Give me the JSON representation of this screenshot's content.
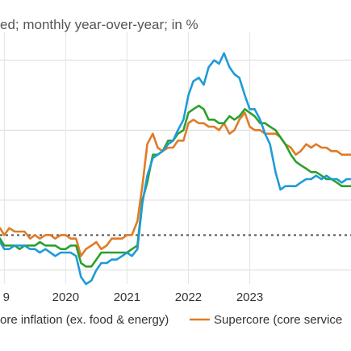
{
  "chart_data": {
    "type": "line",
    "subtitle": "ed; monthly year-over-year; in %",
    "x_ticks": [
      {
        "year": 2019,
        "label": "9"
      },
      {
        "year": 2020,
        "label": "2020"
      },
      {
        "year": 2021,
        "label": "2021"
      },
      {
        "year": 2022,
        "label": "2022"
      },
      {
        "year": 2023,
        "label": "2023"
      }
    ],
    "xlim": [
      2018.93,
      2024.65
    ],
    "ylim": [
      0.6,
      7.8
    ],
    "gridlines_y": [
      1,
      3,
      5,
      7
    ],
    "reference_line_y": 2,
    "grid": true,
    "legend_placement": "bottom",
    "legend": [
      {
        "label": "ore inflation (ex. food & energy)",
        "color": "#2ca02c"
      },
      {
        "label": "Supercore (core service",
        "color": "#e07b28"
      }
    ],
    "series": [
      {
        "color": "#1f9bd7",
        "x": [
          2018.93,
          2019.0,
          2019.08,
          2019.17,
          2019.25,
          2019.33,
          2019.42,
          2019.5,
          2019.58,
          2019.67,
          2019.75,
          2019.83,
          2019.92,
          2020.0,
          2020.08,
          2020.17,
          2020.25,
          2020.33,
          2020.42,
          2020.5,
          2020.58,
          2020.67,
          2020.75,
          2020.83,
          2020.92,
          2021.0,
          2021.08,
          2021.17,
          2021.25,
          2021.33,
          2021.42,
          2021.5,
          2021.58,
          2021.67,
          2021.75,
          2021.83,
          2021.92,
          2022.0,
          2022.08,
          2022.17,
          2022.25,
          2022.33,
          2022.42,
          2022.5,
          2022.58,
          2022.67,
          2022.75,
          2022.83,
          2022.92,
          2023.0,
          2023.08,
          2023.17,
          2023.25,
          2023.33,
          2023.42,
          2023.5,
          2023.58,
          2023.67,
          2023.75,
          2023.83,
          2023.92,
          2024.0,
          2024.08,
          2024.17,
          2024.25,
          2024.33,
          2024.42,
          2024.5,
          2024.58,
          2024.65
        ],
        "y": [
          1.8,
          1.6,
          1.6,
          1.7,
          1.7,
          1.7,
          1.6,
          1.6,
          1.5,
          1.6,
          1.5,
          1.4,
          1.5,
          1.5,
          1.5,
          1.4,
          0.8,
          0.6,
          0.7,
          1.0,
          1.2,
          1.2,
          1.3,
          1.3,
          1.4,
          1.5,
          1.4,
          1.6,
          2.9,
          3.7,
          4.2,
          4.3,
          4.4,
          4.6,
          4.7,
          5.0,
          5.3,
          6.0,
          6.4,
          6.5,
          6.3,
          6.8,
          7.0,
          6.9,
          7.2,
          6.8,
          6.6,
          6.5,
          6.0,
          5.6,
          5.6,
          5.3,
          4.9,
          4.6,
          3.8,
          3.3,
          3.4,
          3.4,
          3.4,
          3.5,
          3.6,
          3.6,
          3.7,
          3.6,
          3.7,
          3.6,
          3.6,
          3.5,
          3.6,
          3.6
        ]
      },
      {
        "name": "ore inflation (ex. food & energy)",
        "color": "#2ca02c",
        "x": [
          2018.93,
          2019.0,
          2019.08,
          2019.17,
          2019.25,
          2019.33,
          2019.42,
          2019.5,
          2019.58,
          2019.67,
          2019.75,
          2019.83,
          2019.92,
          2020.0,
          2020.08,
          2020.17,
          2020.25,
          2020.33,
          2020.42,
          2020.5,
          2020.58,
          2020.67,
          2020.75,
          2020.83,
          2020.92,
          2021.0,
          2021.08,
          2021.17,
          2021.25,
          2021.33,
          2021.42,
          2021.5,
          2021.58,
          2021.67,
          2021.75,
          2021.83,
          2021.92,
          2022.0,
          2022.08,
          2022.17,
          2022.25,
          2022.33,
          2022.42,
          2022.5,
          2022.58,
          2022.67,
          2022.75,
          2022.83,
          2022.92,
          2023.0,
          2023.08,
          2023.17,
          2023.25,
          2023.33,
          2023.42,
          2023.5,
          2023.58,
          2023.67,
          2023.75,
          2023.83,
          2023.92,
          2024.0,
          2024.08,
          2024.17,
          2024.25,
          2024.33,
          2024.42,
          2024.5,
          2024.58,
          2024.65
        ],
        "y": [
          1.9,
          1.7,
          1.7,
          1.7,
          1.6,
          1.7,
          1.7,
          1.7,
          1.8,
          1.7,
          1.7,
          1.7,
          1.6,
          1.6,
          1.7,
          1.7,
          1.2,
          1.1,
          1.1,
          1.3,
          1.5,
          1.5,
          1.5,
          1.5,
          1.5,
          1.5,
          1.6,
          1.7,
          3.0,
          3.5,
          4.3,
          4.3,
          4.4,
          4.7,
          4.7,
          4.9,
          5.0,
          5.5,
          5.6,
          5.7,
          5.6,
          5.3,
          5.3,
          5.2,
          5.2,
          5.4,
          5.3,
          5.4,
          5.6,
          5.5,
          5.4,
          5.2,
          5.2,
          5.1,
          5.0,
          4.8,
          4.6,
          4.3,
          4.1,
          4.0,
          3.9,
          3.8,
          3.8,
          3.7,
          3.6,
          3.6,
          3.5,
          3.4,
          3.4,
          3.4
        ]
      },
      {
        "name": "Supercore (core service",
        "color": "#e07b28",
        "x": [
          2018.93,
          2019.0,
          2019.08,
          2019.17,
          2019.25,
          2019.33,
          2019.42,
          2019.5,
          2019.58,
          2019.67,
          2019.75,
          2019.83,
          2019.92,
          2020.0,
          2020.08,
          2020.17,
          2020.25,
          2020.33,
          2020.42,
          2020.5,
          2020.58,
          2020.67,
          2020.75,
          2020.83,
          2020.92,
          2021.0,
          2021.08,
          2021.17,
          2021.25,
          2021.33,
          2021.42,
          2021.5,
          2021.58,
          2021.67,
          2021.75,
          2021.83,
          2021.92,
          2022.0,
          2022.08,
          2022.17,
          2022.25,
          2022.33,
          2022.42,
          2022.5,
          2022.58,
          2022.67,
          2022.75,
          2022.83,
          2022.92,
          2023.0,
          2023.08,
          2023.17,
          2023.25,
          2023.33,
          2023.42,
          2023.5,
          2023.58,
          2023.67,
          2023.75,
          2023.83,
          2023.92,
          2024.0,
          2024.08,
          2024.17,
          2024.25,
          2024.33,
          2024.42,
          2024.5,
          2024.58,
          2024.65
        ],
        "y": [
          2.2,
          2.0,
          2.2,
          2.1,
          2.1,
          2.1,
          1.9,
          2.0,
          1.9,
          2.0,
          2.0,
          1.9,
          2.0,
          2.0,
          1.9,
          1.9,
          1.4,
          1.6,
          1.7,
          1.8,
          1.6,
          1.7,
          1.9,
          1.9,
          1.9,
          2.0,
          2.0,
          2.4,
          3.4,
          4.6,
          4.9,
          4.5,
          4.4,
          4.5,
          4.5,
          4.7,
          4.7,
          5.2,
          5.3,
          5.2,
          5.2,
          5.1,
          5.1,
          5.0,
          5.2,
          4.9,
          5.0,
          5.3,
          5.5,
          5.1,
          5.0,
          5.0,
          4.9,
          4.9,
          4.9,
          4.8,
          4.6,
          4.5,
          4.3,
          4.4,
          4.6,
          4.5,
          4.6,
          4.5,
          4.5,
          4.4,
          4.4,
          4.3,
          4.3,
          4.3
        ]
      }
    ]
  }
}
